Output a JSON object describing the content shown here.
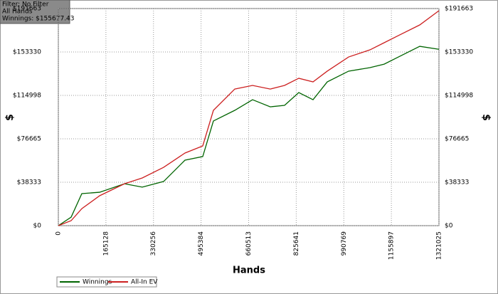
{
  "info": {
    "filter": "Filter: No Filter",
    "hands": "All Hands",
    "winnings": "Winnings: $155677.43"
  },
  "chart_data": {
    "type": "line",
    "xlabel": "Hands",
    "ylabel": "$",
    "x": [
      0,
      44400,
      81500,
      143200,
      229600,
      291300,
      365400,
      439500,
      501200,
      538200,
      612300,
      674000,
      735700,
      785100,
      834500,
      884000,
      933300,
      1007400,
      1081500,
      1130900,
      1180300,
      1254400,
      1321025
    ],
    "series": [
      {
        "name": "Winnings",
        "color": "#006400",
        "values": [
          0,
          7500,
          28300,
          29500,
          37000,
          34000,
          39000,
          57800,
          61000,
          92400,
          101800,
          111200,
          104900,
          106200,
          117500,
          111200,
          126900,
          136400,
          139500,
          142600,
          148900,
          158300,
          155677
        ]
      },
      {
        "name": "All-In EV",
        "color": "#cc2020",
        "values": [
          0,
          4400,
          15000,
          26400,
          37000,
          42100,
          51500,
          64100,
          70400,
          101800,
          120600,
          123800,
          120600,
          123800,
          130100,
          126900,
          136400,
          148900,
          155200,
          161500,
          167800,
          177200,
          189800
        ]
      }
    ],
    "xlim": [
      0,
      1321025
    ],
    "xticks": [
      0,
      165128,
      330256,
      495384,
      660513,
      825641,
      990769,
      1155897,
      1321025
    ],
    "ylim": [
      0,
      191663
    ],
    "yticks": [
      {
        "value": 0,
        "label": "$0"
      },
      {
        "value": 38333,
        "label": "$38333"
      },
      {
        "value": 76665,
        "label": "$76665"
      },
      {
        "value": 114998,
        "label": "$114998"
      },
      {
        "value": 153330,
        "label": "$153330"
      },
      {
        "value": 191663,
        "label": "$191663"
      }
    ],
    "grid": true
  }
}
